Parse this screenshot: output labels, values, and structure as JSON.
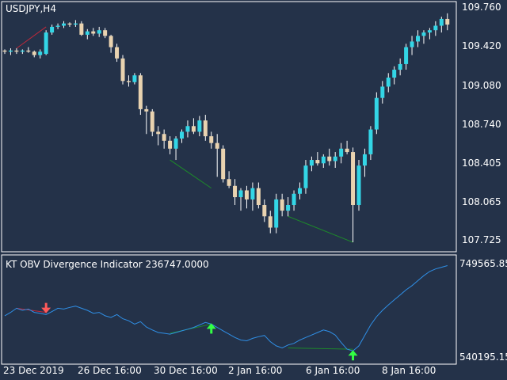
{
  "main": {
    "symbol_label": "USDJPY,H4",
    "price_axis": [
      "109.760",
      "109.420",
      "109.080",
      "108.740",
      "108.405",
      "108.065",
      "107.725"
    ],
    "colors": {
      "background": "#243249",
      "bull": "#33d6e6",
      "bear": "#e9d3b0",
      "wick": "#ffffff",
      "bear_div": "#c0283a",
      "bull_div": "#1d8a2a"
    }
  },
  "indicator": {
    "title": "KT OBV Divergence Indicator 236747.0000",
    "axis_top": "749565.85",
    "axis_bottom": "540195.15",
    "colors": {
      "line": "#2f8fe6",
      "bear_arrow": "#ff5a5a",
      "bull_arrow": "#33ff44"
    }
  },
  "time_axis": [
    "23 Dec 2019",
    "26 Dec 16:00",
    "30 Dec 16:00",
    "2 Jan 16:00",
    "6 Jan 16:00",
    "8 Jan 16:00"
  ],
  "chart_data": [
    {
      "type": "candlestick",
      "title": "USDJPY,H4",
      "ylim": [
        107.65,
        109.84
      ],
      "y_ticks": [
        109.76,
        109.42,
        109.08,
        108.74,
        108.405,
        108.065,
        107.725
      ],
      "x_tick_labels": [
        "23 Dec 2019",
        "26 Dec 16:00",
        "30 Dec 16:00",
        "2 Jan 16:00",
        "6 Jan 16:00",
        "8 Jan 16:00"
      ],
      "candles": [
        [
          109.42,
          109.43,
          109.39,
          109.41
        ],
        [
          109.41,
          109.44,
          109.38,
          109.42
        ],
        [
          109.42,
          109.44,
          109.39,
          109.41
        ],
        [
          109.41,
          109.43,
          109.39,
          109.42
        ],
        [
          109.42,
          109.45,
          109.4,
          109.41
        ],
        [
          109.41,
          109.42,
          109.36,
          109.38
        ],
        [
          109.38,
          109.43,
          109.35,
          109.41
        ],
        [
          109.39,
          109.6,
          109.38,
          109.58
        ],
        [
          109.58,
          109.65,
          109.56,
          109.63
        ],
        [
          109.63,
          109.66,
          109.61,
          109.64
        ],
        [
          109.64,
          109.68,
          109.62,
          109.66
        ],
        [
          109.66,
          109.67,
          109.63,
          109.65
        ],
        [
          109.65,
          109.69,
          109.63,
          109.66
        ],
        [
          109.66,
          109.68,
          109.55,
          109.56
        ],
        [
          109.56,
          109.61,
          109.52,
          109.59
        ],
        [
          109.59,
          109.62,
          109.55,
          109.57
        ],
        [
          109.57,
          109.63,
          109.54,
          109.6
        ],
        [
          109.6,
          109.62,
          109.53,
          109.55
        ],
        [
          109.55,
          109.56,
          109.4,
          109.45
        ],
        [
          109.45,
          109.48,
          109.32,
          109.35
        ],
        [
          109.35,
          109.38,
          109.12,
          109.15
        ],
        [
          109.15,
          109.2,
          109.1,
          109.14
        ],
        [
          109.14,
          109.22,
          109.12,
          109.2
        ],
        [
          109.2,
          109.22,
          108.85,
          108.9
        ],
        [
          108.9,
          108.93,
          108.68,
          108.88
        ],
        [
          108.88,
          108.9,
          108.66,
          108.7
        ],
        [
          108.7,
          108.75,
          108.58,
          108.68
        ],
        [
          108.68,
          108.72,
          108.55,
          108.62
        ],
        [
          108.62,
          108.66,
          108.5,
          108.55
        ],
        [
          108.55,
          108.66,
          108.45,
          108.64
        ],
        [
          108.64,
          108.72,
          108.6,
          108.7
        ],
        [
          108.7,
          108.8,
          108.65,
          108.75
        ],
        [
          108.75,
          108.82,
          108.68,
          108.7
        ],
        [
          108.7,
          108.84,
          108.66,
          108.8
        ],
        [
          108.8,
          108.85,
          108.62,
          108.66
        ],
        [
          108.66,
          108.7,
          108.55,
          108.6
        ],
        [
          108.6,
          108.68,
          108.3,
          108.55
        ],
        [
          108.55,
          108.58,
          108.25,
          108.28
        ],
        [
          108.28,
          108.35,
          108.2,
          108.22
        ],
        [
          108.22,
          108.28,
          108.05,
          108.12
        ],
        [
          108.12,
          108.2,
          108.0,
          108.18
        ],
        [
          108.18,
          108.22,
          108.02,
          108.1
        ],
        [
          108.1,
          108.25,
          108.0,
          108.2
        ],
        [
          108.2,
          108.25,
          108.02,
          108.05
        ],
        [
          108.05,
          108.1,
          107.9,
          107.95
        ],
        [
          107.95,
          108.0,
          107.8,
          107.85
        ],
        [
          107.85,
          108.15,
          107.8,
          108.1
        ],
        [
          108.1,
          108.15,
          107.95,
          108.0
        ],
        [
          108.0,
          108.12,
          107.95,
          108.05
        ],
        [
          108.05,
          108.18,
          108.0,
          108.15
        ],
        [
          108.15,
          108.25,
          108.1,
          108.2
        ],
        [
          108.2,
          108.45,
          108.15,
          108.4
        ],
        [
          108.4,
          108.48,
          108.35,
          108.45
        ],
        [
          108.45,
          108.52,
          108.4,
          108.42
        ],
        [
          108.42,
          108.5,
          108.38,
          108.48
        ],
        [
          108.48,
          108.55,
          108.4,
          108.44
        ],
        [
          108.44,
          108.52,
          108.38,
          108.48
        ],
        [
          108.48,
          108.6,
          108.42,
          108.55
        ],
        [
          108.55,
          108.62,
          108.5,
          108.52
        ],
        [
          108.52,
          108.56,
          107.72,
          108.05
        ],
        [
          108.05,
          108.45,
          108.0,
          108.4
        ],
        [
          108.4,
          108.55,
          108.3,
          108.5
        ],
        [
          108.5,
          108.75,
          108.45,
          108.72
        ],
        [
          108.72,
          109.05,
          108.68,
          109.0
        ],
        [
          109.0,
          109.15,
          108.95,
          109.1
        ],
        [
          109.1,
          109.22,
          109.05,
          109.18
        ],
        [
          109.18,
          109.28,
          109.12,
          109.25
        ],
        [
          109.25,
          109.35,
          109.2,
          109.3
        ],
        [
          109.3,
          109.48,
          109.25,
          109.45
        ],
        [
          109.45,
          109.55,
          109.38,
          109.5
        ],
        [
          109.5,
          109.6,
          109.45,
          109.55
        ],
        [
          109.55,
          109.6,
          109.48,
          109.58
        ],
        [
          109.58,
          109.62,
          109.52,
          109.6
        ],
        [
          109.6,
          109.68,
          109.55,
          109.64
        ],
        [
          109.64,
          109.72,
          109.58,
          109.7
        ],
        [
          109.7,
          109.75,
          109.6,
          109.65
        ]
      ],
      "divergence_lines": [
        {
          "color": "bear",
          "from": [
            2,
            109.44
          ],
          "to": [
            7,
            109.63
          ]
        },
        {
          "color": "bull",
          "from": [
            28,
            108.45
          ],
          "to": [
            35,
            108.2
          ]
        },
        {
          "color": "bull",
          "from": [
            48,
            107.95
          ],
          "to": [
            59,
            107.72
          ]
        }
      ]
    },
    {
      "type": "line",
      "title": "KT OBV Divergence Indicator 236747.0000",
      "ylim": [
        520000,
        770000
      ],
      "y_ticks": [
        749565.85,
        540195.15
      ],
      "values": [
        632000,
        640000,
        650000,
        645000,
        648000,
        640000,
        638000,
        635000,
        642000,
        650000,
        648000,
        652000,
        655000,
        650000,
        645000,
        638000,
        640000,
        632000,
        628000,
        635000,
        625000,
        620000,
        612000,
        618000,
        605000,
        598000,
        592000,
        590000,
        588000,
        592000,
        596000,
        600000,
        604000,
        610000,
        616000,
        612000,
        604000,
        596000,
        588000,
        580000,
        574000,
        572000,
        578000,
        582000,
        585000,
        570000,
        560000,
        555000,
        562000,
        566000,
        574000,
        580000,
        586000,
        592000,
        598000,
        594000,
        586000,
        568000,
        552000,
        548000,
        560000,
        585000,
        610000,
        630000,
        645000,
        658000,
        670000,
        682000,
        694000,
        704000,
        716000,
        728000,
        738000,
        744000,
        748000,
        752000
      ],
      "divergence_lines": [
        {
          "color": "bear",
          "from": [
            2,
            650000
          ],
          "to": [
            7,
            640000
          ]
        },
        {
          "color": "bull",
          "from": [
            28,
            590000
          ],
          "to": [
            35,
            612000
          ]
        },
        {
          "color": "bull",
          "from": [
            48,
            555000
          ],
          "to": [
            59,
            552000
          ]
        }
      ],
      "arrows": [
        {
          "direction": "down",
          "index": 7,
          "value": 640000
        },
        {
          "direction": "up",
          "index": 35,
          "value": 612000
        },
        {
          "direction": "up",
          "index": 59,
          "value": 548000
        }
      ]
    }
  ]
}
